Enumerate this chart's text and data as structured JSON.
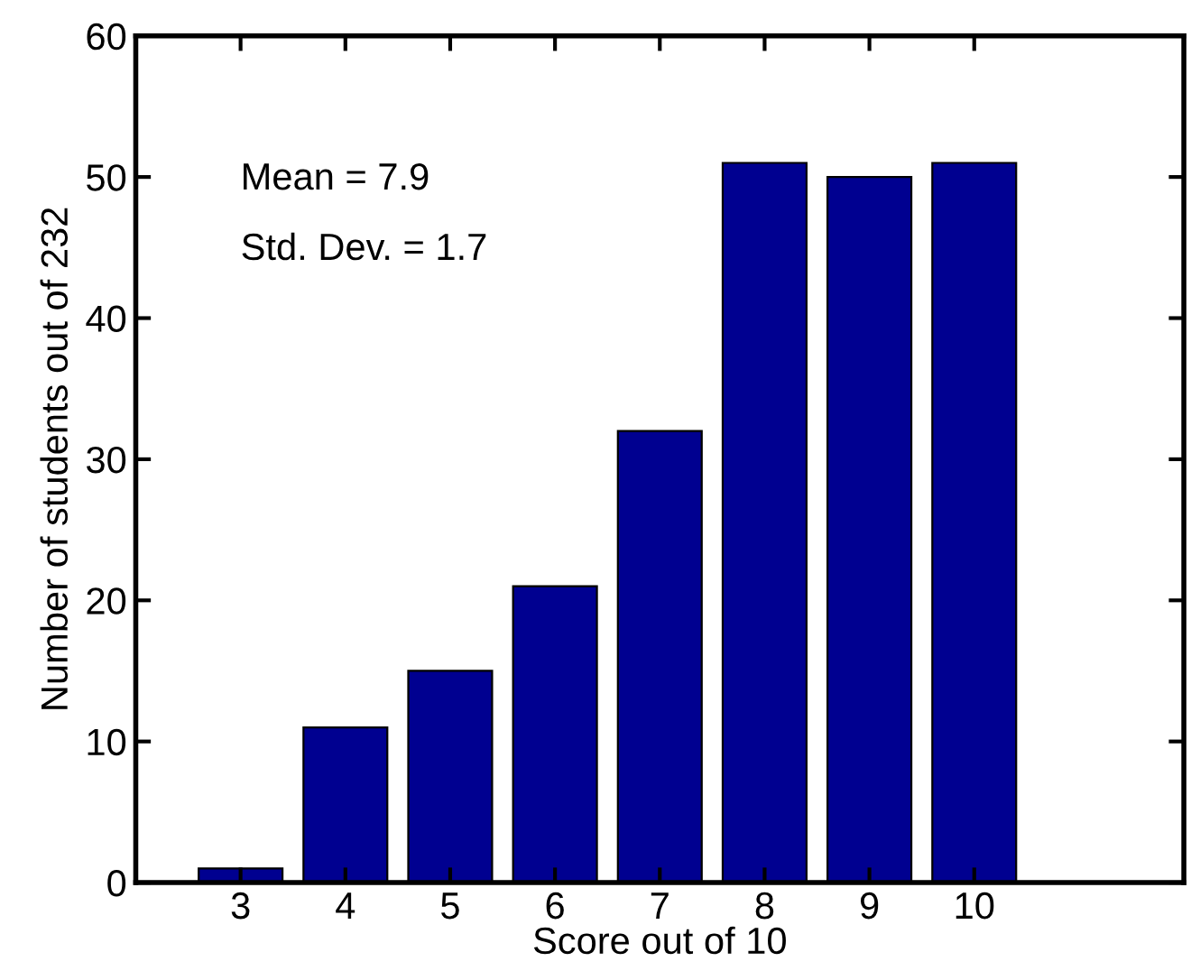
{
  "chart_data": {
    "type": "bar",
    "xlabel": "Score out of 10",
    "ylabel": "Number of students out of 232",
    "x": [
      3,
      4,
      5,
      6,
      7,
      8,
      9,
      10
    ],
    "values": [
      1,
      11,
      15,
      21,
      32,
      51,
      50,
      51
    ],
    "color": "#000090",
    "xlim": [
      2,
      12
    ],
    "xticks": [
      3,
      4,
      5,
      6,
      7,
      8,
      9,
      10
    ],
    "ylim": [
      0,
      60
    ],
    "yticks": [
      0,
      10,
      20,
      30,
      40,
      50,
      60
    ],
    "annotations": [
      "Mean = 7.9",
      "Std. Dev. = 1.7"
    ],
    "grid": false,
    "legend": false
  }
}
